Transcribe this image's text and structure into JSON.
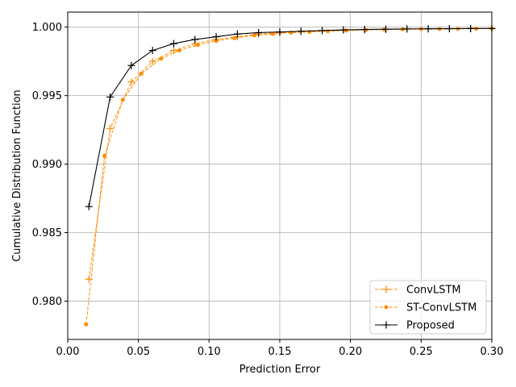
{
  "chart_data": {
    "type": "line",
    "title": "",
    "xlabel": "Prediction Error",
    "ylabel": "Cumulative Distribution Function",
    "xlim": [
      0.0,
      0.3
    ],
    "ylim": [
      0.9772,
      1.0011
    ],
    "xticks": [
      0.0,
      0.05,
      0.1,
      0.15,
      0.2,
      0.25,
      0.3
    ],
    "xtick_labels": [
      "0.00",
      "0.05",
      "0.10",
      "0.15",
      "0.20",
      "0.25",
      "0.30"
    ],
    "yticks": [
      0.98,
      0.985,
      0.99,
      0.995,
      1.0
    ],
    "ytick_labels": [
      "0.980",
      "0.985",
      "0.990",
      "0.995",
      "1.000"
    ],
    "grid": true,
    "legend_position": "lower-right",
    "series": [
      {
        "name": "ConvLSTM",
        "color": "#ff8c00",
        "line_style": "dashed",
        "marker": "plus",
        "x": [
          0.015,
          0.03,
          0.045,
          0.06,
          0.075,
          0.09,
          0.105,
          0.12,
          0.135,
          0.15,
          0.165,
          0.18,
          0.195,
          0.21,
          0.225,
          0.24,
          0.255,
          0.27,
          0.285,
          0.3
        ],
        "y": [
          0.9816,
          0.9926,
          0.996,
          0.9975,
          0.9983,
          0.9988,
          0.9991,
          0.9993,
          0.9995,
          0.9996,
          0.9997,
          0.99975,
          0.9998,
          0.99982,
          0.99985,
          0.99987,
          0.99988,
          0.99989,
          0.9999,
          0.9999
        ]
      },
      {
        "name": "ST-ConvLSTM",
        "color": "#ff8c00",
        "line_style": "dashed",
        "marker": "dot",
        "x": [
          0.013,
          0.026,
          0.039,
          0.052,
          0.066,
          0.079,
          0.092,
          0.105,
          0.118,
          0.132,
          0.145,
          0.158,
          0.171,
          0.184,
          0.197,
          0.211,
          0.224,
          0.237,
          0.25,
          0.263,
          0.276,
          0.289,
          0.3
        ],
        "y": [
          0.9783,
          0.9906,
          0.9947,
          0.9966,
          0.9977,
          0.9983,
          0.9987,
          0.999,
          0.9992,
          0.9994,
          0.9995,
          0.9996,
          0.99965,
          0.9997,
          0.99975,
          0.9998,
          0.99982,
          0.99984,
          0.99986,
          0.99987,
          0.99988,
          0.99989,
          0.9999
        ]
      },
      {
        "name": "Proposed",
        "color": "#000000",
        "line_style": "solid",
        "marker": "plus",
        "x": [
          0.015,
          0.03,
          0.045,
          0.06,
          0.075,
          0.09,
          0.105,
          0.12,
          0.135,
          0.15,
          0.165,
          0.18,
          0.195,
          0.21,
          0.225,
          0.24,
          0.255,
          0.27,
          0.285,
          0.3
        ],
        "y": [
          0.9869,
          0.9949,
          0.9972,
          0.9983,
          0.9988,
          0.9991,
          0.9993,
          0.9995,
          0.9996,
          0.99965,
          0.9997,
          0.99975,
          0.9998,
          0.99983,
          0.99985,
          0.99987,
          0.99988,
          0.99989,
          0.9999,
          0.9999
        ]
      }
    ]
  }
}
